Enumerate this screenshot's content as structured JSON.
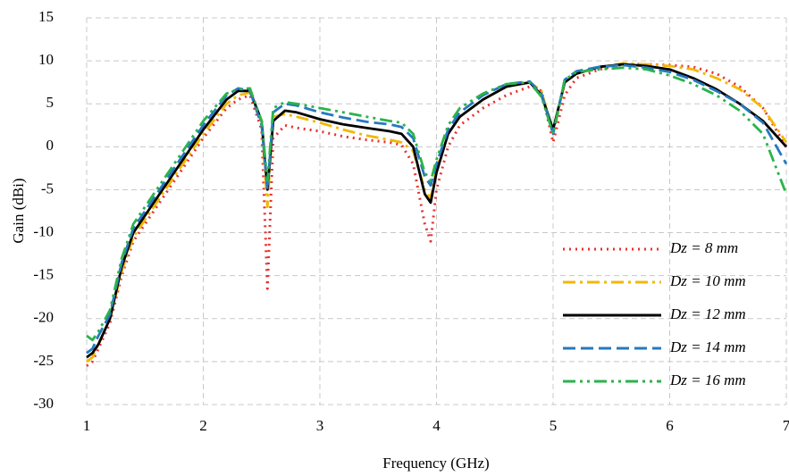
{
  "chart_data": {
    "type": "line",
    "x_label": "Frequency (GHz)",
    "y_label": "Gain (dBi)",
    "x": [
      1,
      1.05,
      1.1,
      1.2,
      1.3,
      1.4,
      1.6,
      1.8,
      2.0,
      2.2,
      2.3,
      2.4,
      2.5,
      2.55,
      2.6,
      2.7,
      2.8,
      3.0,
      3.2,
      3.4,
      3.6,
      3.7,
      3.8,
      3.9,
      3.95,
      4.0,
      4.1,
      4.2,
      4.4,
      4.6,
      4.8,
      4.9,
      5.0,
      5.1,
      5.2,
      5.4,
      5.6,
      5.8,
      6.0,
      6.2,
      6.4,
      6.6,
      6.8,
      7.0
    ],
    "series": [
      {
        "name": "Dz = 8 mm",
        "color": "#e8312f",
        "dash": "2,5",
        "values": [
          -25.5,
          -25,
          -23.5,
          -20.5,
          -15,
          -11,
          -7,
          -3,
          1,
          4.5,
          5.5,
          6,
          2,
          -16.5,
          1,
          2.5,
          2.2,
          1.8,
          1.2,
          0.8,
          0.5,
          0.2,
          -2,
          -9,
          -11,
          -5,
          0,
          2.5,
          4.5,
          6,
          7,
          6.5,
          0.5,
          6,
          8,
          9,
          9.6,
          9.6,
          9.5,
          9.3,
          8.5,
          7,
          4.5,
          0
        ]
      },
      {
        "name": "Dz = 10 mm",
        "color": "#f2b800",
        "dash": "14,5,3,5",
        "values": [
          -25,
          -24.5,
          -23,
          -20,
          -14.5,
          -10.5,
          -6.5,
          -2.5,
          1.5,
          5,
          6,
          6.3,
          3,
          -7,
          3.5,
          3.8,
          3.5,
          2.8,
          2,
          1.3,
          0.8,
          0.5,
          -0.5,
          -5,
          -6,
          -2.5,
          1.5,
          3.5,
          5.5,
          7,
          7.5,
          6.5,
          1.5,
          7.5,
          8.5,
          9.3,
          9.7,
          9.6,
          9.4,
          9,
          8,
          6.7,
          4.5,
          0.5
        ]
      },
      {
        "name": "Dz = 12 mm",
        "color": "#000000",
        "dash": "none",
        "values": [
          -24.5,
          -24,
          -23,
          -20,
          -14,
          -10,
          -6,
          -2,
          2,
          5.5,
          6.5,
          6.5,
          3,
          -5,
          3,
          4.2,
          4,
          3.2,
          2.6,
          2.2,
          1.8,
          1.5,
          0,
          -5.5,
          -6.5,
          -3,
          1.5,
          3.5,
          5.5,
          7,
          7.5,
          6,
          2,
          7.5,
          8.5,
          9.3,
          9.6,
          9.4,
          9,
          8,
          6.7,
          5,
          3,
          0
        ]
      },
      {
        "name": "Dz = 14 mm",
        "color": "#2678c0",
        "dash": "14,6",
        "values": [
          -24,
          -23.5,
          -22,
          -19.5,
          -13.5,
          -9.5,
          -5.5,
          -1.5,
          2.5,
          6,
          6.8,
          6.5,
          2.5,
          -5,
          4,
          5,
          4.8,
          4,
          3.4,
          2.9,
          2.6,
          2.3,
          1,
          -3.5,
          -4.5,
          -2,
          2,
          4,
          6,
          7.3,
          7.6,
          6.2,
          1.5,
          7.8,
          8.8,
          9.3,
          9.5,
          9.2,
          8.7,
          7.8,
          6.5,
          5,
          2.8,
          -2
        ]
      },
      {
        "name": "Dz = 16 mm",
        "color": "#2bb34a",
        "dash": "14,5,3,5,3,5",
        "values": [
          -22,
          -22.5,
          -21.5,
          -19,
          -13,
          -9,
          -5,
          -1,
          3,
          6.2,
          6.7,
          6.8,
          3,
          -4,
          4.5,
          5.2,
          5,
          4.5,
          4,
          3.5,
          3,
          2.8,
          1.5,
          -3,
          -4,
          -1.5,
          2.5,
          4.5,
          6.2,
          7.3,
          7.5,
          5.8,
          1.5,
          7.8,
          8.7,
          9,
          9.2,
          9,
          8.3,
          7.3,
          6,
          4.2,
          1.5,
          -5.5
        ]
      }
    ],
    "xlim": [
      1,
      7
    ],
    "ylim": [
      -30,
      15
    ],
    "xticks": [
      1,
      2,
      3,
      4,
      5,
      6,
      7
    ],
    "yticks": [
      -30,
      -25,
      -20,
      -15,
      -10,
      -5,
      0,
      5,
      10,
      15
    ],
    "grid": true,
    "legend": "lower right"
  }
}
